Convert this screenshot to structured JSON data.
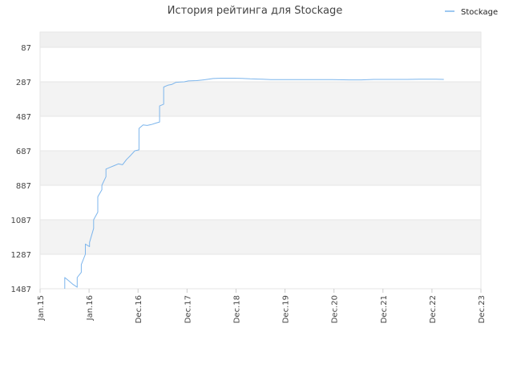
{
  "chart_data": {
    "type": "line",
    "title": "История рейтинга для Stockage",
    "legend": {
      "position": "top-right",
      "entries": [
        "Stockage"
      ]
    },
    "y_axis": {
      "reversed": true,
      "range": [
        87,
        1487
      ],
      "ticks": [
        "87",
        "287",
        "487",
        "687",
        "887",
        "1087",
        "1287",
        "1487"
      ]
    },
    "x_axis": {
      "range": [
        "2015-01",
        "2023-12"
      ],
      "ticks": [
        "Jan.15",
        "Jan.16",
        "Dec.16",
        "Dec.17",
        "Dec.18",
        "Dec.19",
        "Dec.20",
        "Dec.21",
        "Dec.22",
        "Dec.23"
      ]
    },
    "grid": true,
    "series": [
      {
        "name": "Stockage",
        "color": "#7cb5ec",
        "points": [
          [
            "2015-07",
            1487
          ],
          [
            "2015-07",
            1422
          ],
          [
            "2015-08",
            1442
          ],
          [
            "2015-09",
            1462
          ],
          [
            "2015-10",
            1478
          ],
          [
            "2015-10",
            1422
          ],
          [
            "2015-11",
            1392
          ],
          [
            "2015-11",
            1347
          ],
          [
            "2015-12",
            1287
          ],
          [
            "2015-12",
            1228
          ],
          [
            "2016-01",
            1243
          ],
          [
            "2016-01",
            1218
          ],
          [
            "2016-02",
            1137
          ],
          [
            "2016-02",
            1087
          ],
          [
            "2016-03",
            1043
          ],
          [
            "2016-03",
            953
          ],
          [
            "2016-04",
            913
          ],
          [
            "2016-04",
            887
          ],
          [
            "2016-05",
            837
          ],
          [
            "2016-05",
            793
          ],
          [
            "2016-06",
            783
          ],
          [
            "2016-07",
            773
          ],
          [
            "2016-08",
            763
          ],
          [
            "2016-09",
            768
          ],
          [
            "2016-10",
            737
          ],
          [
            "2016-11",
            713
          ],
          [
            "2016-12",
            687
          ],
          [
            "2017-01",
            682
          ],
          [
            "2017-01",
            557
          ],
          [
            "2017-02",
            537
          ],
          [
            "2017-03",
            540
          ],
          [
            "2017-04",
            535
          ],
          [
            "2017-05",
            527
          ],
          [
            "2017-06",
            520
          ],
          [
            "2017-06",
            427
          ],
          [
            "2017-07",
            417
          ],
          [
            "2017-07",
            317
          ],
          [
            "2017-08",
            307
          ],
          [
            "2017-09",
            302
          ],
          [
            "2017-10",
            290
          ],
          [
            "2017-11",
            288
          ],
          [
            "2017-12",
            287
          ],
          [
            "2018-01",
            282
          ],
          [
            "2018-03",
            280
          ],
          [
            "2018-05",
            275
          ],
          [
            "2018-07",
            268
          ],
          [
            "2018-09",
            266
          ],
          [
            "2018-12",
            266
          ],
          [
            "2019-02",
            267
          ],
          [
            "2019-04",
            270
          ],
          [
            "2019-06",
            271
          ],
          [
            "2019-07",
            272
          ],
          [
            "2019-09",
            274
          ],
          [
            "2019-12",
            274
          ],
          [
            "2020-06",
            274
          ],
          [
            "2020-12",
            274
          ],
          [
            "2021-04",
            276
          ],
          [
            "2021-07",
            276
          ],
          [
            "2021-10",
            273
          ],
          [
            "2022-06",
            273
          ],
          [
            "2022-09",
            272
          ],
          [
            "2023-01",
            272
          ],
          [
            "2023-03",
            273
          ]
        ]
      }
    ]
  }
}
